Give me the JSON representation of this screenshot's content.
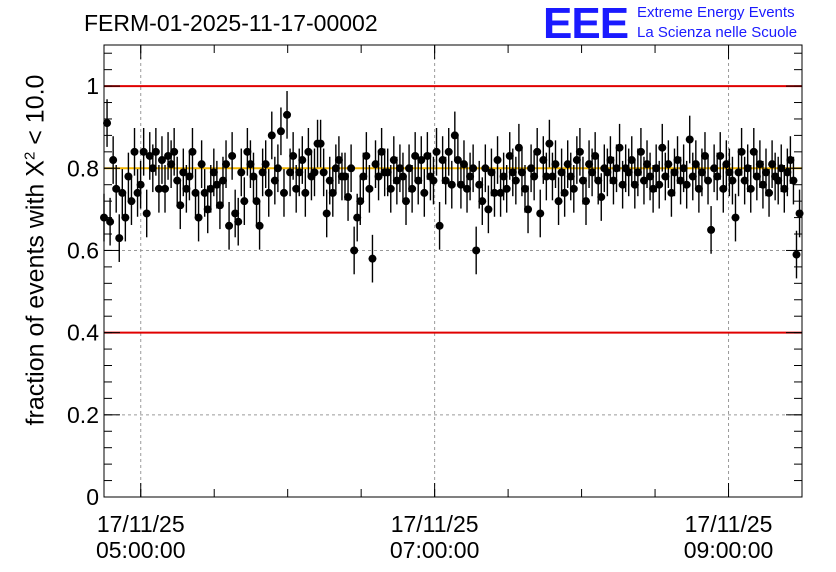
{
  "title": "FERM-01-2025-11-17-00002",
  "logo": {
    "mark": "EEE",
    "line1": "Extreme Energy Events",
    "line2": "La Scienza nelle Scuole",
    "color": "#1a1aff"
  },
  "chart_data": {
    "type": "scatter",
    "title": "FERM-01-2025-11-17-00002",
    "ylabel_prefix": "fraction of events with X",
    "ylabel_sup": "2",
    "ylabel_suffix": " < 10.0",
    "xlabel": "",
    "xlim": [
      "2025-11-17T04:45:00",
      "2025-11-17T09:30:00"
    ],
    "ylim": [
      0,
      1.1
    ],
    "y_ticks": [
      "0",
      "0.2",
      "0.4",
      "0.6",
      "0.8",
      "1"
    ],
    "y_tick_values": [
      0,
      0.2,
      0.4,
      0.6,
      0.8,
      1.0
    ],
    "x_ticks": [
      {
        "time": "2025-11-17T05:00:00",
        "line1": "17/11/25",
        "line2": "05:00:00"
      },
      {
        "time": "2025-11-17T07:00:00",
        "line1": "17/11/25",
        "line2": "07:00:00"
      },
      {
        "time": "2025-11-17T09:00:00",
        "line1": "17/11/25",
        "line2": "09:00:00"
      }
    ],
    "grid": true,
    "reference_lines": [
      {
        "y": 1.0,
        "color": "#e00000"
      },
      {
        "y": 0.4,
        "color": "#e00000"
      },
      {
        "y": 0.8,
        "color": "#f0b400"
      }
    ],
    "marker_color": "#000000",
    "error_bar": 0.058,
    "series": [
      {
        "x_start": "2025-11-17T04:45:00",
        "x_end": "2025-11-17T09:29:00",
        "values": [
          0.68,
          0.91,
          0.67,
          0.82,
          0.75,
          0.63,
          0.74,
          0.68,
          0.78,
          0.72,
          0.84,
          0.74,
          0.76,
          0.84,
          0.69,
          0.83,
          0.8,
          0.84,
          0.75,
          0.82,
          0.75,
          0.83,
          0.81,
          0.84,
          0.77,
          0.71,
          0.79,
          0.75,
          0.78,
          0.84,
          0.74,
          0.68,
          0.81,
          0.74,
          0.7,
          0.75,
          0.79,
          0.76,
          0.71,
          0.77,
          0.81,
          0.66,
          0.83,
          0.69,
          0.67,
          0.79,
          0.72,
          0.84,
          0.81,
          0.78,
          0.72,
          0.66,
          0.79,
          0.81,
          0.74,
          0.88,
          0.77,
          0.8,
          0.89,
          0.74,
          0.93,
          0.79,
          0.83,
          0.75,
          0.79,
          0.82,
          0.74,
          0.84,
          0.78,
          0.79,
          0.86,
          0.86,
          0.79,
          0.69,
          0.77,
          0.74,
          0.8,
          0.82,
          0.78,
          0.78,
          0.73,
          0.8,
          0.6,
          0.68,
          0.72,
          0.78,
          0.83,
          0.75,
          0.58,
          0.81,
          0.78,
          0.84,
          0.79,
          0.79,
          0.75,
          0.82,
          0.77,
          0.8,
          0.78,
          0.72,
          0.8,
          0.75,
          0.83,
          0.77,
          0.82,
          0.74,
          0.83,
          0.78,
          0.77,
          0.84,
          0.66,
          0.82,
          0.77,
          0.84,
          0.76,
          0.88,
          0.82,
          0.76,
          0.81,
          0.75,
          0.78,
          0.8,
          0.6,
          0.76,
          0.72,
          0.8,
          0.7,
          0.79,
          0.74,
          0.82,
          0.74,
          0.78,
          0.75,
          0.83,
          0.79,
          0.77,
          0.85,
          0.79,
          0.75,
          0.7,
          0.8,
          0.78,
          0.84,
          0.69,
          0.82,
          0.78,
          0.86,
          0.78,
          0.81,
          0.72,
          0.79,
          0.74,
          0.81,
          0.78,
          0.75,
          0.82,
          0.84,
          0.77,
          0.72,
          0.81,
          0.79,
          0.83,
          0.77,
          0.73,
          0.8,
          0.79,
          0.82,
          0.77,
          0.8,
          0.85,
          0.76,
          0.8,
          0.79,
          0.82,
          0.76,
          0.79,
          0.84,
          0.77,
          0.81,
          0.78,
          0.75,
          0.8,
          0.76,
          0.85,
          0.78,
          0.81,
          0.74,
          0.79,
          0.82,
          0.77,
          0.8,
          0.76,
          0.87,
          0.78,
          0.81,
          0.75,
          0.79,
          0.83,
          0.77,
          0.65,
          0.8,
          0.78,
          0.83,
          0.75,
          0.81,
          0.79,
          0.77,
          0.68,
          0.79,
          0.84,
          0.77,
          0.8,
          0.75,
          0.84,
          0.78,
          0.81,
          0.76,
          0.79,
          0.74,
          0.81,
          0.78,
          0.77,
          0.8,
          0.75,
          0.79,
          0.82,
          0.77,
          0.59,
          0.69
        ]
      }
    ]
  }
}
